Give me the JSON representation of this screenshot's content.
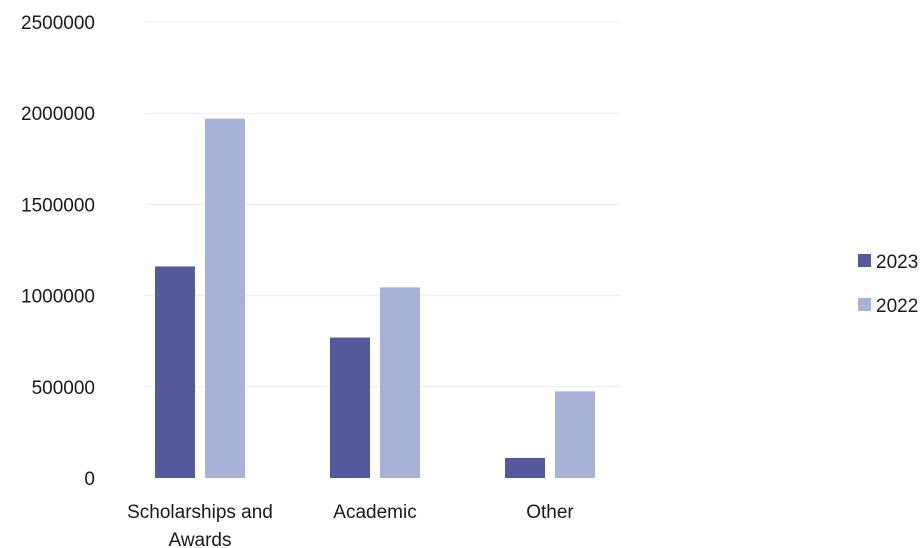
{
  "chart_data": {
    "type": "bar",
    "title": "",
    "xlabel": "",
    "ylabel": "",
    "categories": [
      "Scholarships and Awards",
      "Academic",
      "Other"
    ],
    "category_lines": [
      [
        "Scholarships and",
        "Awards"
      ],
      [
        "Academic"
      ],
      [
        "Other"
      ]
    ],
    "series": [
      {
        "name": "2023",
        "color": "#55589a",
        "values": [
          1160000,
          770000,
          110000
        ]
      },
      {
        "name": "2022",
        "color": "#a8b1d8",
        "values": [
          1970000,
          1045000,
          475000
        ]
      }
    ],
    "ylim": [
      0,
      2500000
    ],
    "yticks": [
      0,
      500000,
      1000000,
      1500000,
      2000000,
      2500000
    ],
    "ytick_labels": [
      "0",
      "500000",
      "1000000",
      "1500000",
      "2000000",
      "2500000"
    ],
    "grid": true,
    "legend_position": "right"
  }
}
